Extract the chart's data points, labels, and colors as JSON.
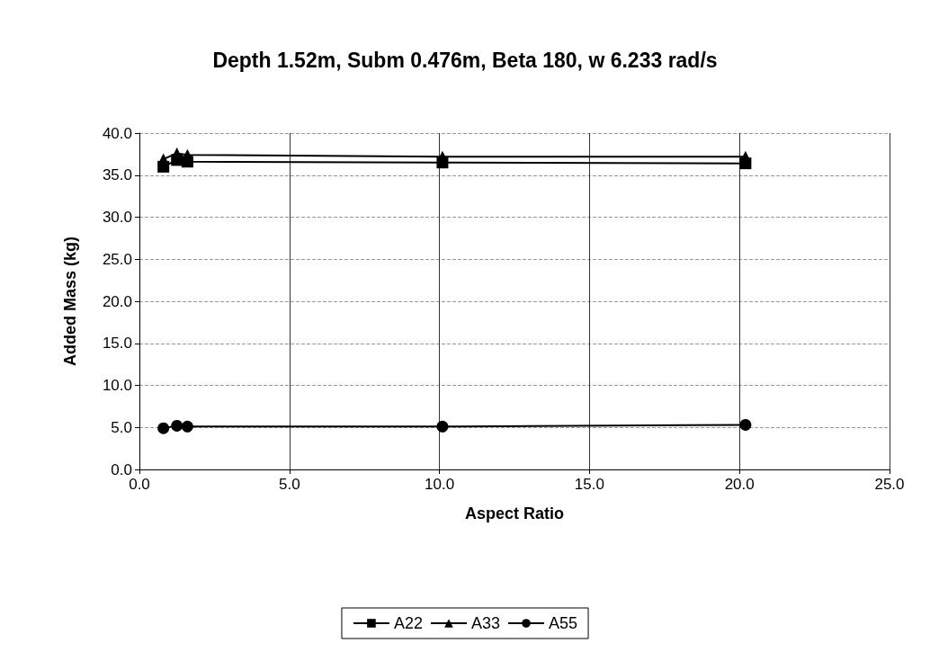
{
  "chart_data": {
    "type": "line",
    "title": "Depth 1.52m, Subm 0.476m, Beta 180, w 6.233 rad/s",
    "xlabel": "Aspect Ratio",
    "ylabel": "Added Mass (kg)",
    "x": [
      0.8,
      1.25,
      1.6,
      10.1,
      20.2
    ],
    "series": [
      {
        "name": "A22",
        "color": "#000000",
        "marker": "square",
        "values": [
          36.0,
          36.8,
          36.6,
          36.5,
          36.4
        ]
      },
      {
        "name": "A33",
        "color": "#000000",
        "marker": "triangle",
        "values": [
          36.9,
          37.6,
          37.4,
          37.2,
          37.2
        ]
      },
      {
        "name": "A55",
        "color": "#000000",
        "marker": "circle",
        "values": [
          4.9,
          5.2,
          5.1,
          5.1,
          5.3
        ]
      }
    ],
    "xlim": [
      0,
      25
    ],
    "xticks": [
      {
        "value": 0,
        "label": "0.0"
      },
      {
        "value": 5,
        "label": "5.0"
      },
      {
        "value": 10,
        "label": "10.0"
      },
      {
        "value": 15,
        "label": "15.0"
      },
      {
        "value": 20,
        "label": "20.0"
      },
      {
        "value": 25,
        "label": "25.0"
      }
    ],
    "ylim": [
      0,
      40
    ],
    "yticks": [
      {
        "value": 0,
        "label": "0.0"
      },
      {
        "value": 5,
        "label": "5.0"
      },
      {
        "value": 10,
        "label": "10.0"
      },
      {
        "value": 15,
        "label": "15.0"
      },
      {
        "value": 20,
        "label": "20.0"
      },
      {
        "value": 25,
        "label": "25.0"
      },
      {
        "value": 30,
        "label": "30.0"
      },
      {
        "value": 35,
        "label": "35.0"
      },
      {
        "value": 40,
        "label": "40.0"
      }
    ],
    "grid": true,
    "legend": "bottom",
    "line_style": "solid"
  }
}
